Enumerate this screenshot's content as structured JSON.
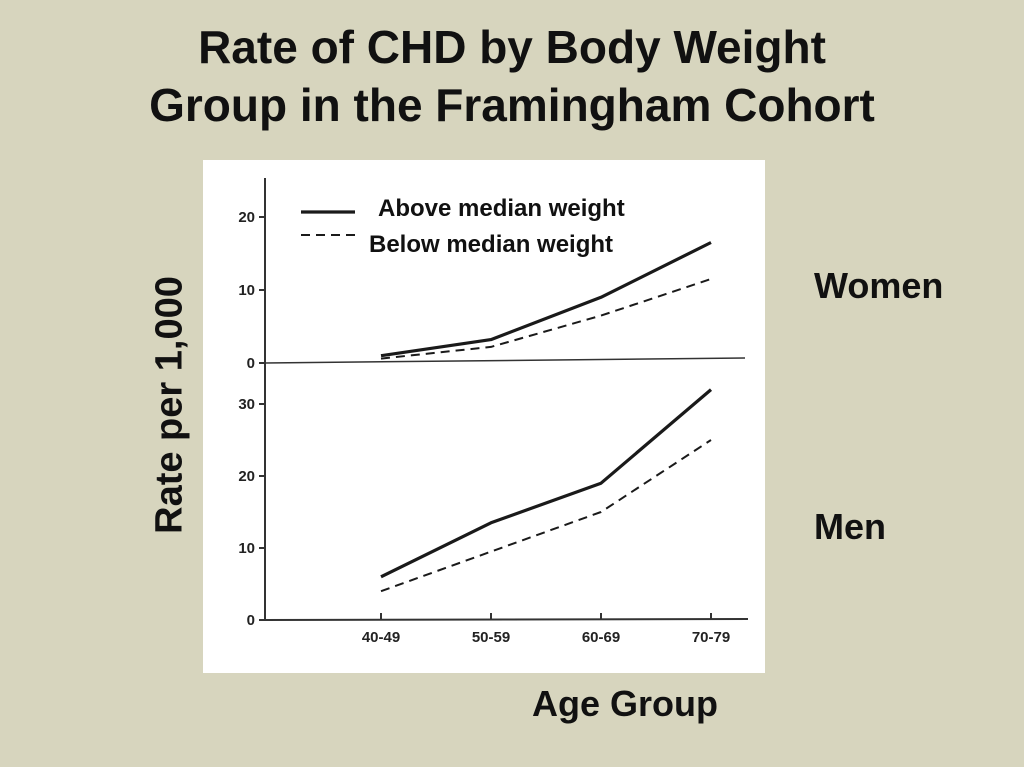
{
  "slide": {
    "title_line1": "Rate of CHD by Body Weight",
    "title_line2": "Group in the Framingham Cohort",
    "y_axis_label": "Rate per 1,000",
    "x_axis_label": "Age Group"
  },
  "chart_data": [
    {
      "type": "line",
      "panel_label": "Women",
      "categories": [
        "40-49",
        "50-59",
        "60-69",
        "70-79"
      ],
      "yticks": [
        0,
        10,
        20
      ],
      "ylim": [
        0,
        24
      ],
      "series": [
        {
          "name": "Above median weight",
          "values": [
            1.0,
            3.2,
            9.0,
            16.5
          ],
          "style": "solid"
        },
        {
          "name": "Below median weight",
          "values": [
            0.6,
            2.2,
            6.5,
            11.5
          ],
          "style": "dashed"
        }
      ]
    },
    {
      "type": "line",
      "panel_label": "Men",
      "categories": [
        "40-49",
        "50-59",
        "60-69",
        "70-79"
      ],
      "yticks": [
        0,
        10,
        20,
        30
      ],
      "ylim": [
        0,
        33
      ],
      "series": [
        {
          "name": "Above median weight",
          "values": [
            6.0,
            13.5,
            19.0,
            32.0
          ],
          "style": "solid"
        },
        {
          "name": "Below median weight",
          "values": [
            4.0,
            9.5,
            15.0,
            25.0
          ],
          "style": "dashed"
        }
      ]
    }
  ]
}
